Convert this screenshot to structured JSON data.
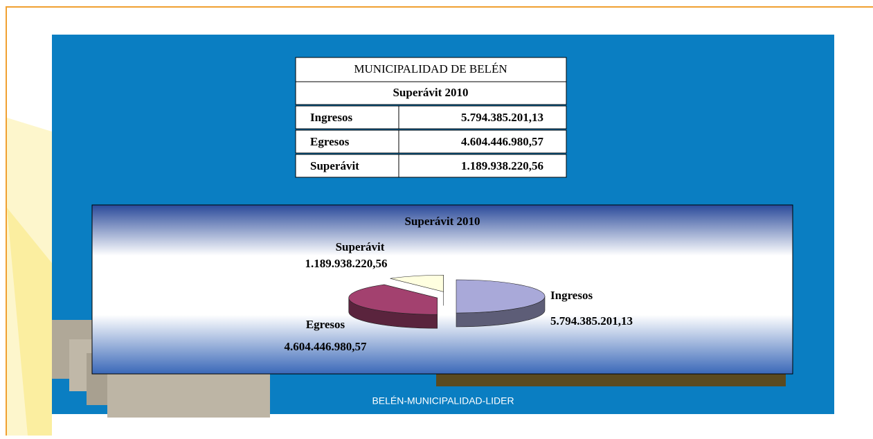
{
  "table": {
    "title": "MUNICIPALIDAD DE BELÉN",
    "subtitle": "Superávit 2010",
    "rows": [
      [
        "Ingresos",
        "5.794.385.201,13"
      ],
      [
        "Egresos",
        "4.604.446.980,57"
      ],
      [
        "Superávit",
        "1.189.938.220,56"
      ]
    ]
  },
  "chart_data": {
    "type": "pie",
    "title": "Superávit 2010",
    "categories": [
      "Ingresos",
      "Egresos",
      "Superávit"
    ],
    "values": [
      5794385201.13,
      4604446980.57,
      1189938220.56
    ],
    "value_labels": [
      "5.794.385.201,13",
      "4.604.446.980,57",
      "1.189.938.220,56"
    ],
    "colors": [
      "#a9a9d9",
      "#a3416f",
      "#ffffe0"
    ]
  },
  "footer": "BELÉN-MUNICIPALIDAD-LIDER"
}
